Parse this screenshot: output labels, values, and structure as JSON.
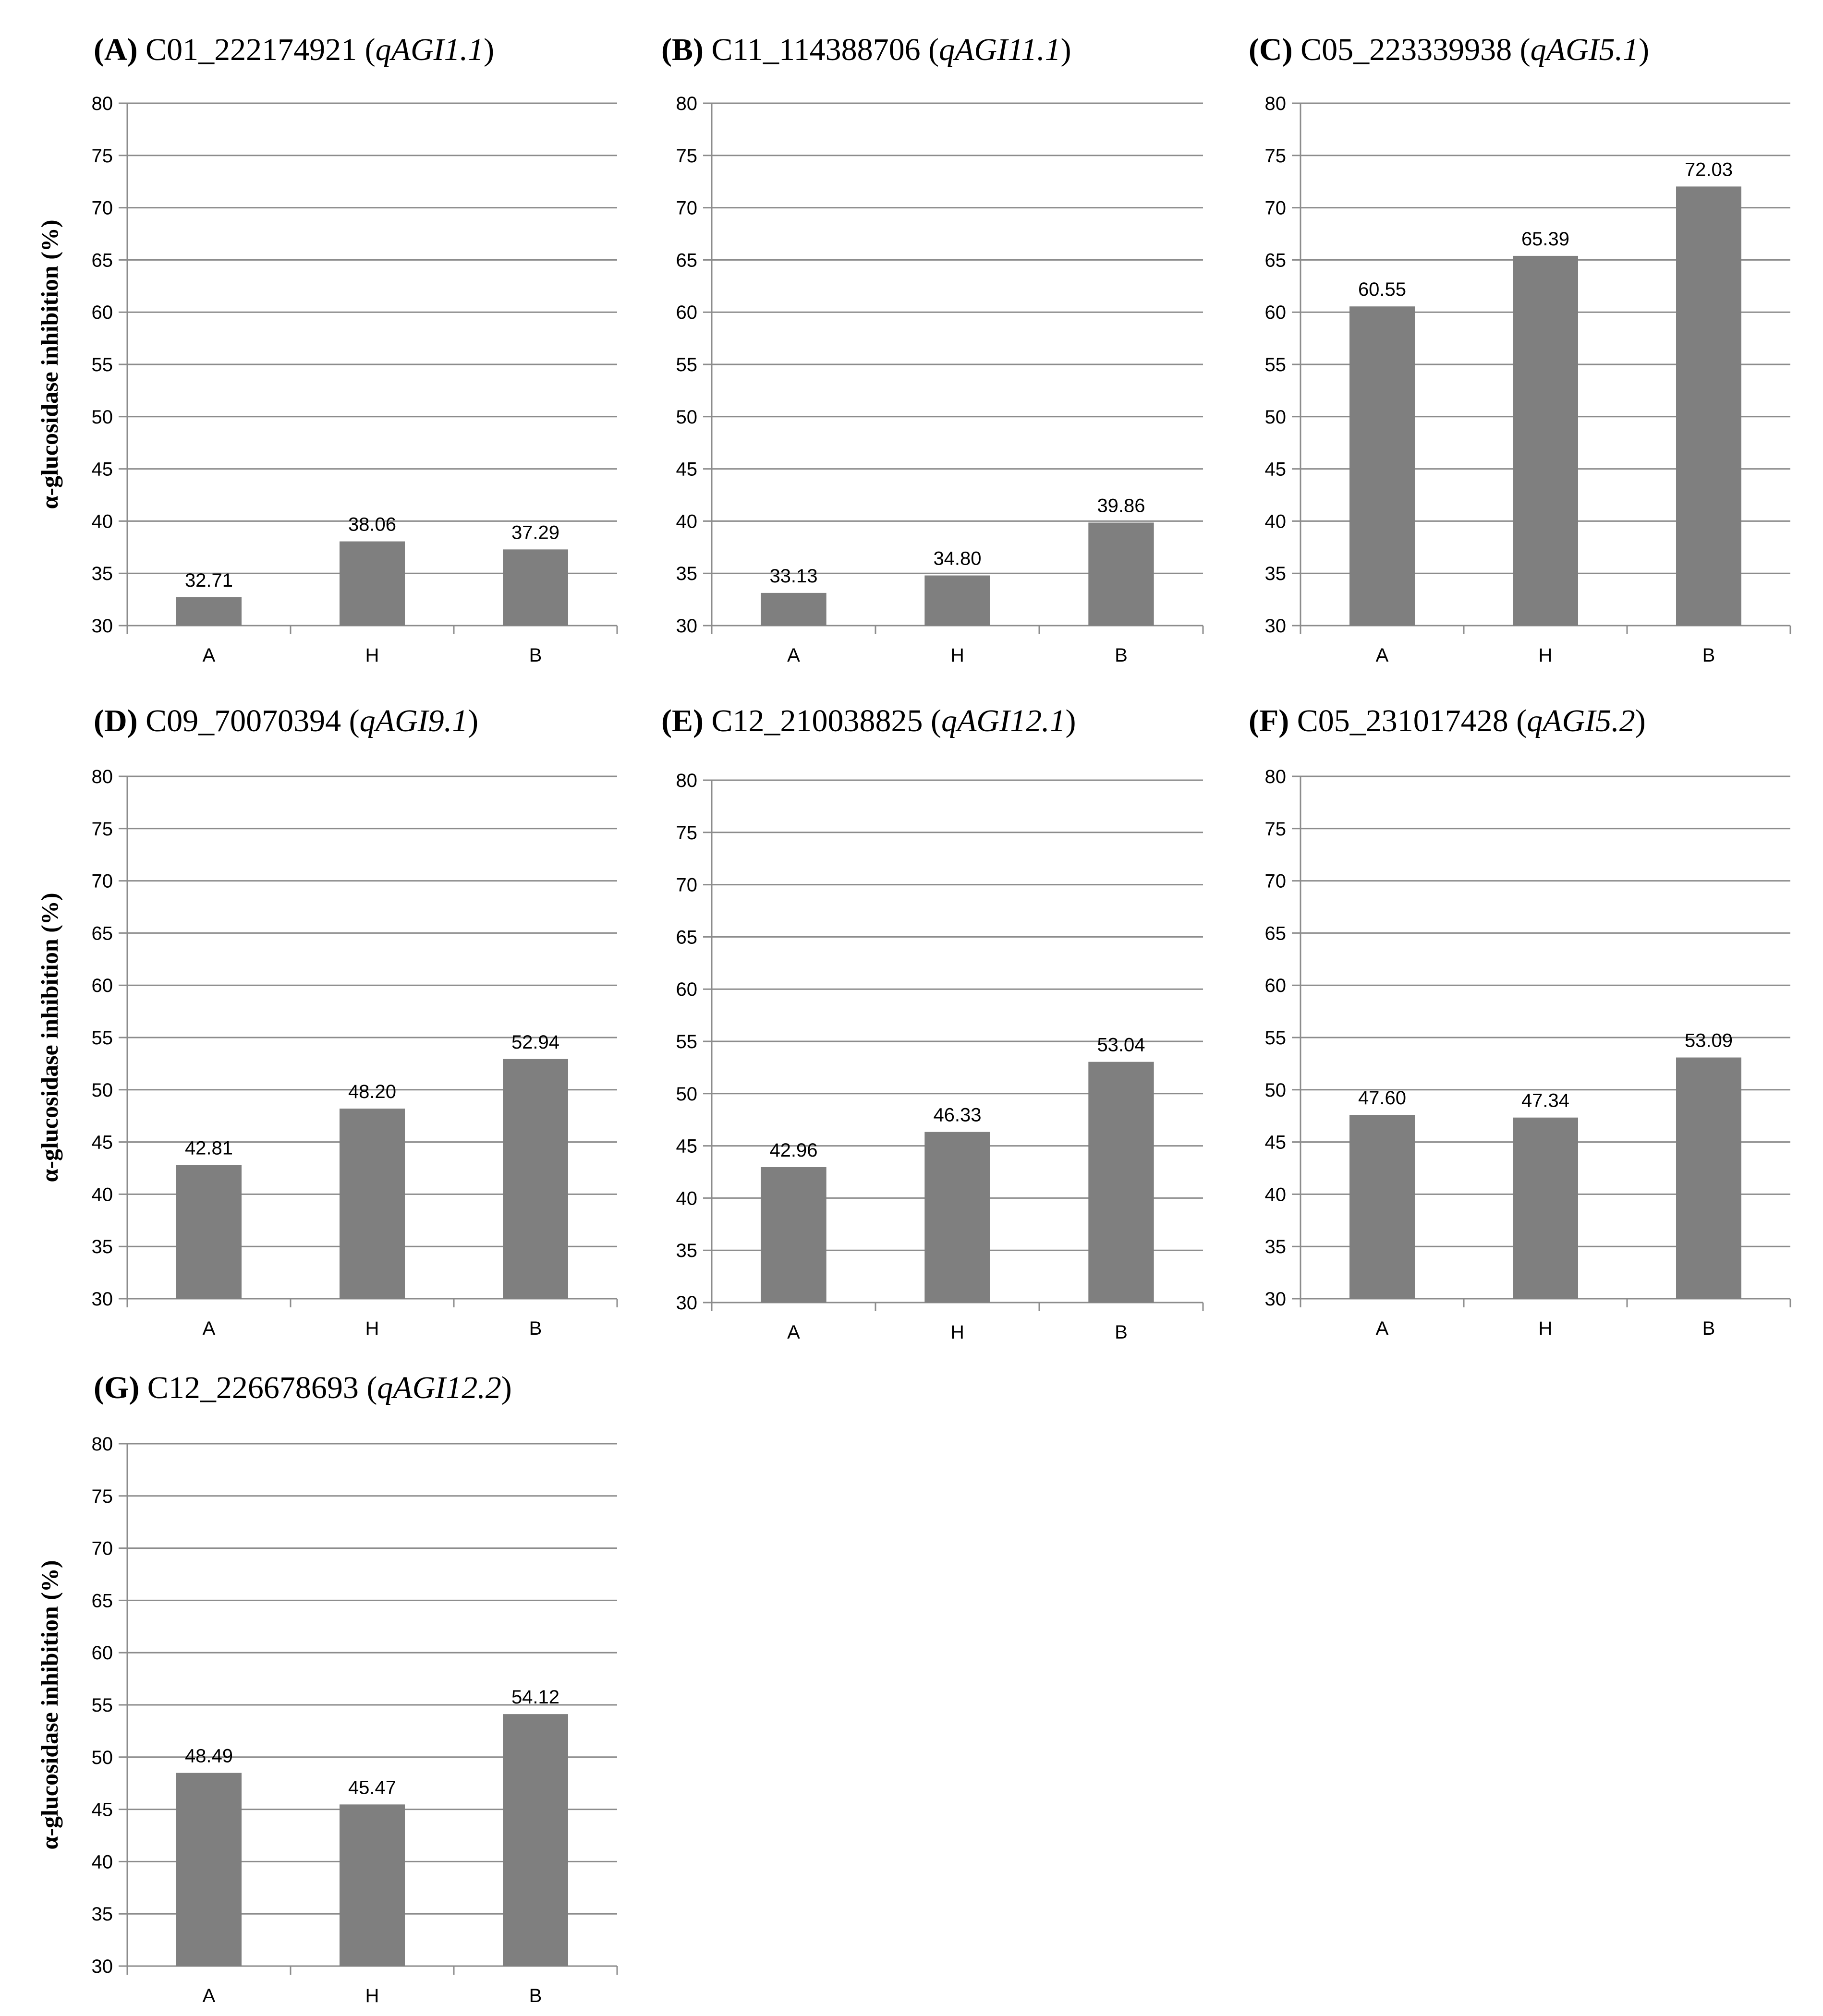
{
  "figure": {
    "y_axis_label": "α-glucosidase inhibition (%)",
    "colors": {
      "bar": "#7f7f7f",
      "grid": "#8c8c8c",
      "text": "#000000"
    }
  },
  "chart_data": [
    {
      "type": "bar",
      "panel": "(A)",
      "marker": "C01_222174921",
      "qtl": "qAGI1.1",
      "categories": [
        "A",
        "H",
        "B"
      ],
      "values": [
        32.71,
        38.06,
        37.29
      ],
      "value_labels": [
        "32.71",
        "38.06",
        "37.29"
      ],
      "ylabel": "α-glucosidase inhibition (%)",
      "ylim": [
        30,
        80
      ],
      "yticks": [
        30,
        35,
        40,
        45,
        50,
        55,
        60,
        65,
        70,
        75,
        80
      ],
      "grid": true
    },
    {
      "type": "bar",
      "panel": "(B)",
      "marker": "C11_114388706",
      "qtl": "qAGI11.1",
      "categories": [
        "A",
        "H",
        "B"
      ],
      "values": [
        33.13,
        34.8,
        39.86
      ],
      "value_labels": [
        "33.13",
        "34.80",
        "39.86"
      ],
      "ylabel": "",
      "ylim": [
        30,
        80
      ],
      "yticks": [
        30,
        35,
        40,
        45,
        50,
        55,
        60,
        65,
        70,
        75,
        80
      ],
      "grid": true
    },
    {
      "type": "bar",
      "panel": "(C)",
      "marker": "C05_223339938",
      "qtl": "qAGI5.1",
      "categories": [
        "A",
        "H",
        "B"
      ],
      "values": [
        60.55,
        65.39,
        72.03
      ],
      "value_labels": [
        "60.55",
        "65.39",
        "72.03"
      ],
      "ylabel": "",
      "ylim": [
        30,
        80
      ],
      "yticks": [
        30,
        35,
        40,
        45,
        50,
        55,
        60,
        65,
        70,
        75,
        80
      ],
      "grid": true
    },
    {
      "type": "bar",
      "panel": "(D)",
      "marker": "C09_70070394",
      "qtl": "qAGI9.1",
      "categories": [
        "A",
        "H",
        "B"
      ],
      "values": [
        42.81,
        48.2,
        52.94
      ],
      "value_labels": [
        "42.81",
        "48.20",
        "52.94"
      ],
      "ylabel": "α-glucosidase inhibition (%)",
      "ylim": [
        30,
        80
      ],
      "yticks": [
        30,
        35,
        40,
        45,
        50,
        55,
        60,
        65,
        70,
        75,
        80
      ],
      "grid": true
    },
    {
      "type": "bar",
      "panel": "(E)",
      "marker": "C12_210038825",
      "qtl": "qAGI12.1",
      "categories": [
        "A",
        "H",
        "B"
      ],
      "values": [
        42.96,
        46.33,
        53.04
      ],
      "value_labels": [
        "42.96",
        "46.33",
        "53.04"
      ],
      "ylabel": "",
      "ylim": [
        30,
        80
      ],
      "yticks": [
        30,
        35,
        40,
        45,
        50,
        55,
        60,
        65,
        70,
        75,
        80
      ],
      "grid": true
    },
    {
      "type": "bar",
      "panel": "(F)",
      "marker": "C05_231017428",
      "qtl": "qAGI5.2",
      "categories": [
        "A",
        "H",
        "B"
      ],
      "values": [
        47.6,
        47.34,
        53.09
      ],
      "value_labels": [
        "47.60",
        "47.34",
        "53.09"
      ],
      "ylabel": "",
      "ylim": [
        30,
        80
      ],
      "yticks": [
        30,
        35,
        40,
        45,
        50,
        55,
        60,
        65,
        70,
        75,
        80
      ],
      "grid": true
    },
    {
      "type": "bar",
      "panel": "(G)",
      "marker": "C12_226678693",
      "qtl": "qAGI12.2",
      "categories": [
        "A",
        "H",
        "B"
      ],
      "values": [
        48.49,
        45.47,
        54.12
      ],
      "value_labels": [
        "48.49",
        "45.47",
        "54.12"
      ],
      "ylabel": "α-glucosidase inhibition (%)",
      "ylim": [
        30,
        80
      ],
      "yticks": [
        30,
        35,
        40,
        45,
        50,
        55,
        60,
        65,
        70,
        75,
        80
      ],
      "grid": true
    }
  ]
}
